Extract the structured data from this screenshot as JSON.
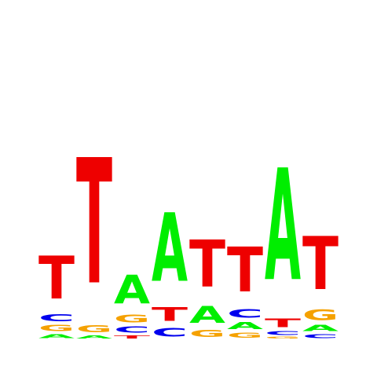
{
  "sequence_logo": {
    "colors": {
      "A": "#00ee00",
      "C": "#0000ee",
      "G": "#f5a100",
      "T": "#ee0000"
    },
    "positions": [
      [
        {
          "letter": "A",
          "height": 8
        },
        {
          "letter": "G",
          "height": 12
        },
        {
          "letter": "C",
          "height": 14
        },
        {
          "letter": "T",
          "height": 88
        }
      ],
      [
        {
          "letter": "A",
          "height": 6
        },
        {
          "letter": "G",
          "height": 14
        },
        {
          "letter": "T",
          "height": 256
        }
      ],
      [
        {
          "letter": "T",
          "height": 6
        },
        {
          "letter": "C",
          "height": 12
        },
        {
          "letter": "G",
          "height": 16
        },
        {
          "letter": "A",
          "height": 58
        }
      ],
      [
        {
          "letter": "C",
          "height": 18
        },
        {
          "letter": "T",
          "height": 28
        },
        {
          "letter": "A",
          "height": 140
        }
      ],
      [
        {
          "letter": "G",
          "height": 14
        },
        {
          "letter": "A",
          "height": 34
        },
        {
          "letter": "T",
          "height": 96
        }
      ],
      [
        {
          "letter": "G",
          "height": 10
        },
        {
          "letter": "A",
          "height": 14
        },
        {
          "letter": "C",
          "height": 18
        },
        {
          "letter": "T",
          "height": 92
        }
      ],
      [
        {
          "letter": "G",
          "height": 4
        },
        {
          "letter": "C",
          "height": 8
        },
        {
          "letter": "T",
          "height": 18
        },
        {
          "letter": "A",
          "height": 228
        }
      ],
      [
        {
          "letter": "C",
          "height": 8
        },
        {
          "letter": "A",
          "height": 12
        },
        {
          "letter": "G",
          "height": 22
        },
        {
          "letter": "T",
          "height": 108
        }
      ]
    ]
  }
}
